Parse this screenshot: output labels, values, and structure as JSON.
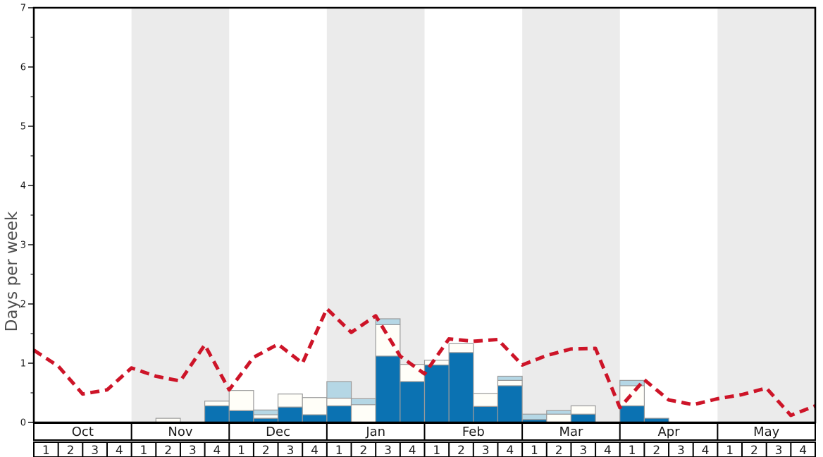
{
  "chart_data": {
    "type": "bar",
    "stacked": true,
    "title": "",
    "xlabel": "",
    "ylabel": "Days per week",
    "ylim": [
      0,
      7
    ],
    "y_major_ticks": [
      0,
      1,
      2,
      3,
      4,
      5,
      6,
      7
    ],
    "y_minor_step": 0.5,
    "grid": false,
    "legend": "none",
    "months": [
      "Oct",
      "Nov",
      "Dec",
      "Jan",
      "Feb",
      "Mar",
      "Apr",
      "May"
    ],
    "weeks_per_month": 4,
    "week_labels": [
      "1",
      "2",
      "3",
      "4"
    ],
    "shaded_month_indexes": [
      1,
      3,
      5,
      7
    ],
    "categories": [
      "Oct-1",
      "Oct-2",
      "Oct-3",
      "Oct-4",
      "Nov-1",
      "Nov-2",
      "Nov-3",
      "Nov-4",
      "Dec-1",
      "Dec-2",
      "Dec-3",
      "Dec-4",
      "Jan-1",
      "Jan-2",
      "Jan-3",
      "Jan-4",
      "Feb-1",
      "Feb-2",
      "Feb-3",
      "Feb-4",
      "Mar-1",
      "Mar-2",
      "Mar-3",
      "Mar-4",
      "Apr-1",
      "Apr-2",
      "Apr-3",
      "Apr-4",
      "May-1",
      "May-2",
      "May-3",
      "May-4"
    ],
    "series": [
      {
        "name": "dark-blue-days",
        "color": "#0b72b2",
        "values": [
          0,
          0,
          0,
          0,
          0,
          0,
          0,
          0.28,
          0.2,
          0.07,
          0.26,
          0.13,
          0.28,
          0,
          1.12,
          0.69,
          0.97,
          1.18,
          0.27,
          0.62,
          0.05,
          0,
          0.14,
          0,
          0.28,
          0.07,
          0,
          0,
          0,
          0,
          0,
          0
        ]
      },
      {
        "name": "white-days",
        "color": "#fffef8",
        "values": [
          0,
          0,
          0,
          0,
          0,
          0.07,
          0,
          0.08,
          0.34,
          0.06,
          0.22,
          0.29,
          0.13,
          0.3,
          0.53,
          0.29,
          0.08,
          0.15,
          0.22,
          0.09,
          0,
          0.14,
          0.14,
          0,
          0.34,
          0,
          0,
          0,
          0,
          0,
          0,
          0
        ]
      },
      {
        "name": "light-blue-days",
        "color": "#b5d7e5",
        "values": [
          0,
          0,
          0,
          0,
          0,
          0,
          0,
          0,
          0,
          0.08,
          0,
          0,
          0.28,
          0.1,
          0.1,
          0,
          0,
          0,
          0,
          0.07,
          0.09,
          0.06,
          0,
          0,
          0.09,
          0,
          0,
          0,
          0,
          0,
          0,
          0
        ]
      }
    ],
    "line": {
      "name": "red-dashed-average-line",
      "color": "#cd1428",
      "dash": [
        13,
        8
      ],
      "width": 5,
      "note": "values at week boundaries, 33 points",
      "values": [
        1.22,
        0.95,
        0.48,
        0.55,
        0.92,
        0.78,
        0.7,
        1.31,
        0.55,
        1.1,
        1.32,
        1.0,
        1.92,
        1.52,
        1.8,
        1.12,
        0.82,
        1.41,
        1.37,
        1.4,
        0.97,
        1.13,
        1.24,
        1.25,
        0.25,
        0.72,
        0.38,
        0.3,
        0.4,
        0.47,
        0.58,
        0.12,
        0.28
      ]
    },
    "colors": {
      "band_gray": "#ebebeb",
      "bar_outline": "#9a9a9a",
      "axis": "#000000",
      "tick_label": "#1a1a1a",
      "axis_label": "#4f4f4f",
      "background": "#ffffff"
    }
  }
}
